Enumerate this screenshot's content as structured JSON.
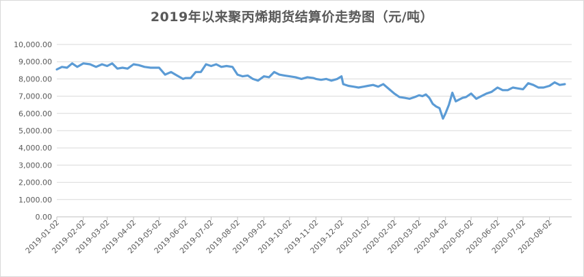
{
  "chart_data": {
    "type": "line",
    "title": "2019年以来聚丙烯期货结算价走势图（元/吨）",
    "xlabel": "",
    "ylabel": "",
    "ylim": [
      0,
      10000
    ],
    "yticks": [
      "0.00",
      "1,000.00",
      "2,000.00",
      "3,000.00",
      "4,000.00",
      "5,000.00",
      "6,000.00",
      "7,000.00",
      "8,000.00",
      "9,000.00",
      "10,000.00"
    ],
    "xticks": [
      "2019-01-02",
      "2019-02-02",
      "2019-03-02",
      "2019-04-02",
      "2019-05-02",
      "2019-06-02",
      "2019-07-02",
      "2019-08-02",
      "2019-09-02",
      "2019-10-02",
      "2019-11-02",
      "2019-12-02",
      "2020-01-02",
      "2020-02-02",
      "2020-03-02",
      "2020-04-02",
      "2020-05-02",
      "2020-06-02",
      "2020-07-02",
      "2020-08-02"
    ],
    "grid": true,
    "legend": "none",
    "line_color": "#5b9bd5",
    "series": [
      {
        "x": [
          "2019-01-02",
          "2019-01-08",
          "2019-01-14",
          "2019-01-20",
          "2019-01-26",
          "2019-02-02",
          "2019-02-10",
          "2019-02-17",
          "2019-02-24",
          "2019-03-02",
          "2019-03-08",
          "2019-03-14",
          "2019-03-20",
          "2019-03-26",
          "2019-04-02",
          "2019-04-08",
          "2019-04-15",
          "2019-04-22",
          "2019-04-29",
          "2019-05-02",
          "2019-05-09",
          "2019-05-16",
          "2019-05-23",
          "2019-05-30",
          "2019-06-02",
          "2019-06-08",
          "2019-06-14",
          "2019-06-20",
          "2019-06-26",
          "2019-07-02",
          "2019-07-08",
          "2019-07-14",
          "2019-07-20",
          "2019-07-27",
          "2019-08-02",
          "2019-08-08",
          "2019-08-14",
          "2019-08-20",
          "2019-08-26",
          "2019-09-02",
          "2019-09-08",
          "2019-09-14",
          "2019-09-20",
          "2019-09-26",
          "2019-10-02",
          "2019-10-09",
          "2019-10-16",
          "2019-10-23",
          "2019-10-30",
          "2019-11-02",
          "2019-11-08",
          "2019-11-14",
          "2019-11-20",
          "2019-11-27",
          "2019-12-02",
          "2019-12-04",
          "2019-12-10",
          "2019-12-16",
          "2019-12-22",
          "2019-12-28",
          "2020-01-02",
          "2020-01-08",
          "2020-01-14",
          "2020-01-20",
          "2020-01-27",
          "2020-02-02",
          "2020-02-08",
          "2020-02-14",
          "2020-02-20",
          "2020-02-26",
          "2020-03-02",
          "2020-03-06",
          "2020-03-10",
          "2020-03-14",
          "2020-03-18",
          "2020-03-22",
          "2020-03-26",
          "2020-03-30",
          "2020-04-02",
          "2020-04-06",
          "2020-04-10",
          "2020-04-14",
          "2020-04-18",
          "2020-04-22",
          "2020-04-26",
          "2020-05-02",
          "2020-05-08",
          "2020-05-14",
          "2020-05-20",
          "2020-05-26",
          "2020-06-02",
          "2020-06-08",
          "2020-06-14",
          "2020-06-20",
          "2020-06-26",
          "2020-07-02",
          "2020-07-08",
          "2020-07-14",
          "2020-07-20",
          "2020-07-26",
          "2020-08-02",
          "2020-08-08",
          "2020-08-14",
          "2020-08-20"
        ],
        "values": [
          8550,
          8700,
          8650,
          8900,
          8700,
          8900,
          8850,
          8700,
          8850,
          8750,
          8900,
          8600,
          8650,
          8600,
          8850,
          8800,
          8700,
          8650,
          8650,
          8650,
          8250,
          8400,
          8200,
          8000,
          8050,
          8050,
          8400,
          8400,
          8850,
          8750,
          8850,
          8700,
          8750,
          8700,
          8250,
          8150,
          8200,
          8000,
          7900,
          8150,
          8100,
          8400,
          8250,
          8200,
          8150,
          8100,
          8000,
          8100,
          8050,
          8000,
          7950,
          8000,
          7900,
          8000,
          8150,
          7700,
          7600,
          7550,
          7500,
          7550,
          7600,
          7650,
          7550,
          7700,
          7400,
          7150,
          6950,
          6900,
          6850,
          6950,
          7050,
          7000,
          7100,
          6900,
          6550,
          6400,
          6300,
          5700,
          6000,
          6500,
          7200,
          6700,
          6800,
          6900,
          6950,
          7150,
          6850,
          7000,
          7150,
          7250,
          7500,
          7350,
          7350,
          7500,
          7450,
          7400,
          7750,
          7650,
          7500,
          7500,
          7600,
          7800,
          7650,
          7700
        ]
      }
    ]
  }
}
